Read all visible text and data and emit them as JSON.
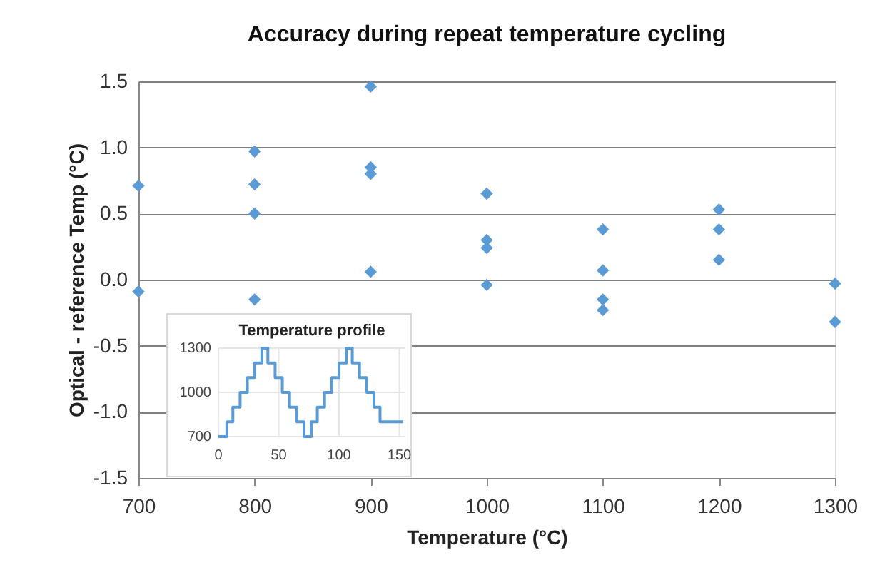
{
  "chart_data": [
    {
      "type": "scatter",
      "title": "Accuracy during repeat temperature cycling",
      "xlabel": "Temperature (°C)",
      "ylabel": "Optical - reference Temp (°C)",
      "x": [
        700,
        700,
        800,
        800,
        800,
        800,
        900,
        900,
        900,
        900,
        1000,
        1000,
        1000,
        1000,
        1100,
        1100,
        1100,
        1100,
        1200,
        1200,
        1200,
        1300,
        1300
      ],
      "values": [
        0.71,
        -0.09,
        0.97,
        0.72,
        0.5,
        -0.15,
        1.46,
        0.85,
        0.8,
        0.06,
        0.65,
        0.3,
        0.24,
        -0.04,
        0.38,
        0.07,
        -0.15,
        -0.23,
        0.53,
        0.38,
        0.15,
        -0.03,
        -0.32
      ],
      "color": "#5b9bd5",
      "marker": "diamond",
      "xlim": [
        700,
        1300
      ],
      "xticks": [
        700,
        800,
        900,
        1000,
        1100,
        1200,
        1300
      ],
      "ylim": [
        -1.5,
        1.5
      ],
      "yticks": [
        {
          "value": -1.5,
          "label": "-1.5"
        },
        {
          "value": -1,
          "label": "-1.0"
        },
        {
          "value": -0.5,
          "label": "-0.5"
        },
        {
          "value": 0,
          "label": "0.0"
        },
        {
          "value": 0.5,
          "label": "0.5"
        },
        {
          "value": 1,
          "label": "1.0"
        },
        {
          "value": 1.5,
          "label": "1.5"
        }
      ],
      "grid": "y"
    },
    {
      "type": "step",
      "title": "Temperature profile",
      "x": [
        0,
        7,
        12,
        18,
        24,
        30,
        36,
        41,
        47,
        53,
        59,
        65,
        71,
        77,
        82,
        88,
        94,
        100,
        106,
        111,
        117,
        123,
        129,
        134,
        153
      ],
      "values": [
        700,
        800,
        900,
        1000,
        1100,
        1200,
        1300,
        1200,
        1100,
        1000,
        900,
        800,
        700,
        800,
        900,
        1000,
        1100,
        1200,
        1300,
        1200,
        1100,
        1000,
        900,
        800,
        800
      ],
      "color": "#5b9bd5",
      "xlim": [
        0,
        155
      ],
      "xticks": [
        0,
        50,
        100,
        150
      ],
      "ylim": [
        700,
        1300
      ],
      "yticks": [
        700,
        1000,
        1300
      ],
      "grid": true
    }
  ]
}
